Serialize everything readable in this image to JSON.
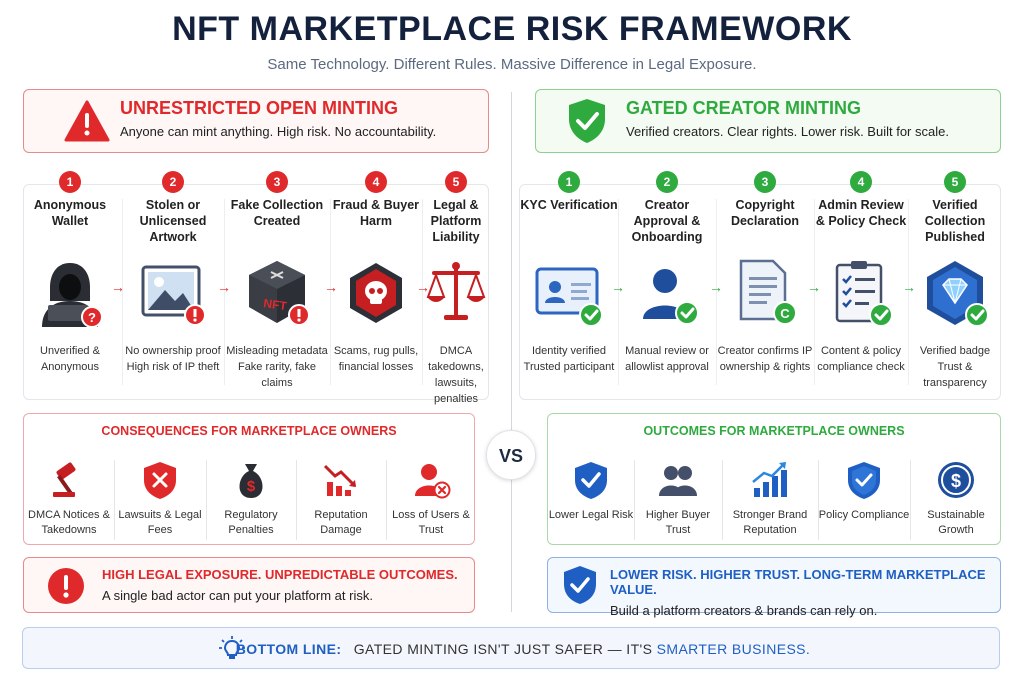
{
  "title": "NFT MARKETPLACE RISK FRAMEWORK",
  "subtitle": "Same Technology. Different Rules. Massive Difference in Legal Exposure.",
  "colors": {
    "red": "#e0292b",
    "green": "#2eaa3f",
    "blue": "#1f5fc4",
    "navy": "#14213d"
  },
  "left": {
    "banner": {
      "title": "UNRESTRICTED OPEN MINTING",
      "subtitle": "Anyone can mint anything. High risk. No accountability.",
      "icon": "warning-triangle-icon"
    },
    "steps": [
      {
        "num": "1",
        "label": "Anonymous Wallet",
        "desc": "Unverified & Anonymous",
        "icon": "hooded-figure-icon"
      },
      {
        "num": "2",
        "label": "Stolen or Unlicensed Artwork",
        "desc": "No ownership proof High risk of IP theft",
        "icon": "image-icon"
      },
      {
        "num": "3",
        "label": "Fake Collection Created",
        "desc": "Misleading metadata Fake rarity, fake claims",
        "icon": "nft-cube-icon"
      },
      {
        "num": "4",
        "label": "Fraud & Buyer Harm",
        "desc": "Scams, rug pulls, financial losses",
        "icon": "skull-icon"
      },
      {
        "num": "5",
        "label": "Legal & Platform Liability",
        "desc": "DMCA takedowns, lawsuits, penalties",
        "icon": "scales-icon"
      }
    ],
    "panel": {
      "heading": "CONSEQUENCES FOR MARKETPLACE OWNERS",
      "items": [
        {
          "label": "DMCA Notices & Takedowns",
          "icon": "gavel-icon"
        },
        {
          "label": "Lawsuits & Legal Fees",
          "icon": "shield-x-icon"
        },
        {
          "label": "Regulatory Penalties",
          "icon": "money-bag-icon"
        },
        {
          "label": "Reputation Damage",
          "icon": "chart-down-icon"
        },
        {
          "label": "Loss of Users & Trust",
          "icon": "user-remove-icon"
        }
      ]
    },
    "summary": {
      "title": "HIGH LEGAL EXPOSURE. UNPREDICTABLE OUTCOMES.",
      "subtitle": "A single bad actor can put your platform at risk.",
      "icon": "alert-circle-icon"
    }
  },
  "right": {
    "banner": {
      "title": "GATED CREATOR MINTING",
      "subtitle": "Verified creators. Clear rights. Lower risk. Built for scale.",
      "icon": "shield-check-icon"
    },
    "steps": [
      {
        "num": "1",
        "label": "KYC Verification",
        "desc": "Identity verified Trusted participant",
        "icon": "id-card-icon"
      },
      {
        "num": "2",
        "label": "Creator Approval & Onboarding",
        "desc": "Manual review or allowlist approval",
        "icon": "user-check-icon"
      },
      {
        "num": "3",
        "label": "Copyright Declaration",
        "desc": "Creator confirms IP ownership & rights",
        "icon": "document-copyright-icon"
      },
      {
        "num": "4",
        "label": "Admin Review & Policy Check",
        "desc": "Content & policy compliance check",
        "icon": "checklist-icon"
      },
      {
        "num": "5",
        "label": "Verified Collection Published",
        "desc": "Verified badge Trust & transparency",
        "icon": "diamond-hexagon-icon"
      }
    ],
    "panel": {
      "heading": "OUTCOMES FOR MARKETPLACE OWNERS",
      "items": [
        {
          "label": "Lower Legal Risk",
          "icon": "shield-check-icon"
        },
        {
          "label": "Higher Buyer Trust",
          "icon": "users-icon"
        },
        {
          "label": "Stronger Brand Reputation",
          "icon": "chart-up-icon"
        },
        {
          "label": "Policy Compliance",
          "icon": "shield-check-icon"
        },
        {
          "label": "Sustainable Growth",
          "icon": "dollar-coin-icon"
        }
      ]
    },
    "summary": {
      "title": "LOWER RISK. HIGHER TRUST. LONG-TERM MARKETPLACE VALUE.",
      "subtitle": "Build a platform creators & brands can rely on.",
      "icon": "shield-check-icon"
    }
  },
  "vs": "VS",
  "bottom": {
    "lead": "BOTTOM LINE:",
    "text": "GATED MINTING ISN'T JUST SAFER — IT'S",
    "highlight": "SMARTER BUSINESS.",
    "icon": "lightbulb-icon"
  }
}
